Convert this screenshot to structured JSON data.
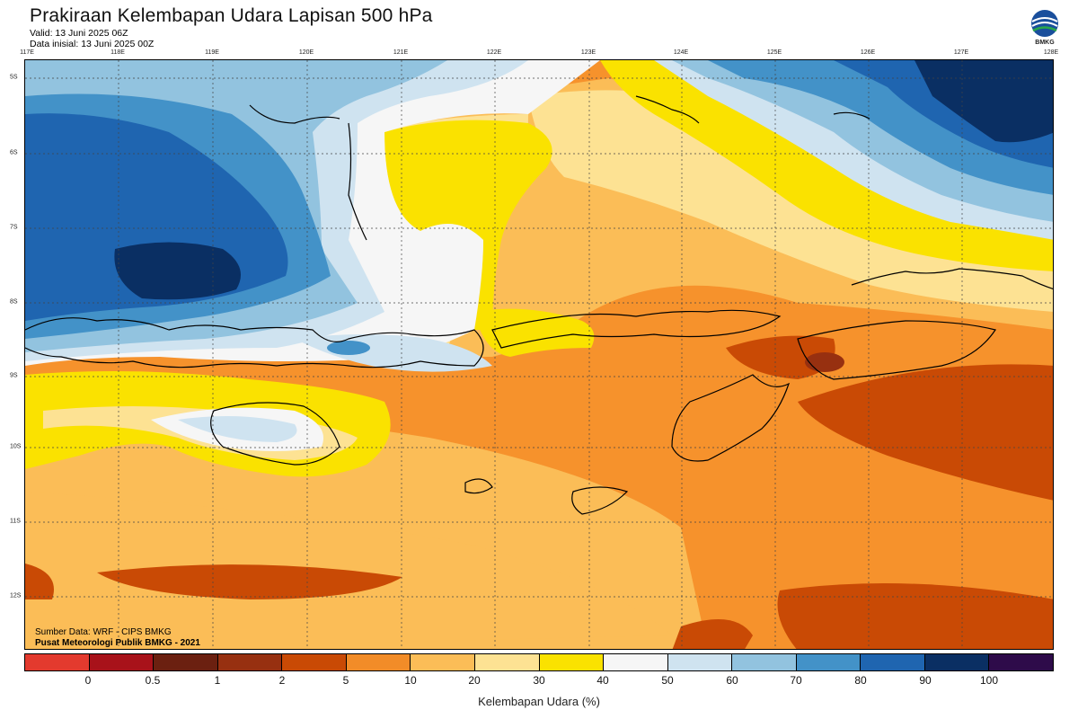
{
  "header": {
    "title": "Prakiraan Kelembapan Udara Lapisan 500 hPa",
    "valid": "Valid: 13 Juni 2025 06Z",
    "initial": "Data inisial: 13 Juni 2025 00Z",
    "logo_text": "BMKG"
  },
  "map": {
    "longitudes": [
      "117E",
      "118E",
      "119E",
      "120E",
      "121E",
      "122E",
      "123E",
      "124E",
      "125E",
      "126E",
      "127E",
      "128E"
    ],
    "latitudes": [
      "5S",
      "6S",
      "7S",
      "8S",
      "9S",
      "10S",
      "11S",
      "12S"
    ]
  },
  "credits": {
    "source": "Sumber Data: WRF - CIPS BMKG",
    "org": "Pusat Meteorologi Publik BMKG - 2021"
  },
  "colorbar": {
    "title": "Kelembapan Udara (%)",
    "labels": [
      "0",
      "0.5",
      "1",
      "2",
      "5",
      "10",
      "20",
      "30",
      "40",
      "50",
      "60",
      "70",
      "80",
      "90",
      "100"
    ],
    "colors": [
      "#e33a2e",
      "#a8121a",
      "#6b2010",
      "#973010",
      "#c94a05",
      "#f28c28",
      "#fbbd57",
      "#fde293",
      "#fae200",
      "#f6f6f6",
      "#cfe3f0",
      "#92c3df",
      "#4392c8",
      "#1f65b0",
      "#0a2f63",
      "#2e0b4a"
    ]
  }
}
